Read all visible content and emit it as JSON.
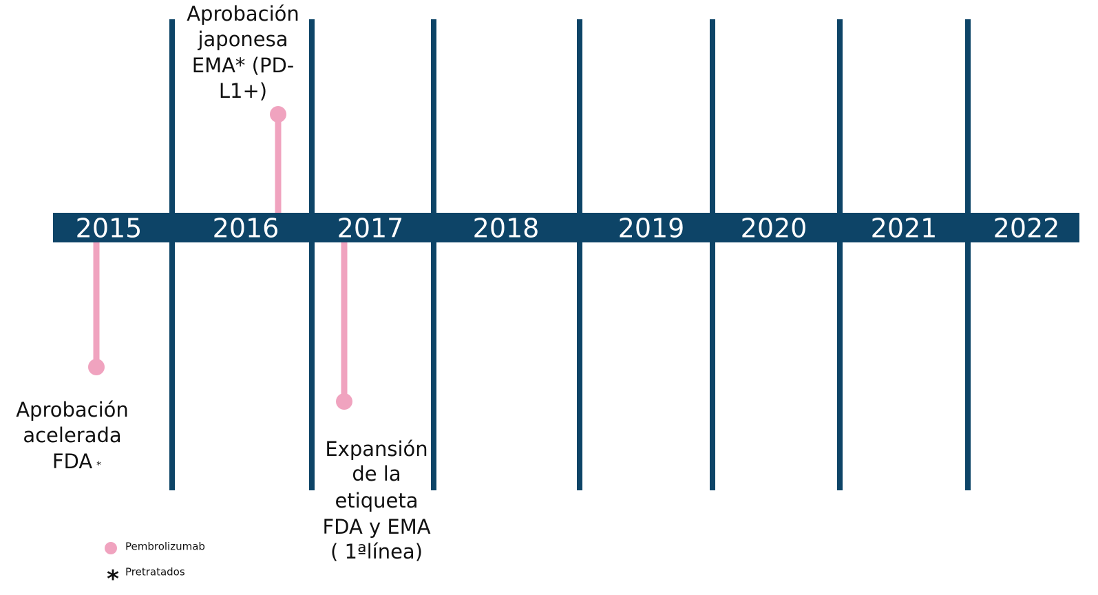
{
  "timeline": {
    "years": [
      "2015",
      "2016",
      "2017",
      "2018",
      "2019",
      "2020",
      "2021",
      "2022"
    ],
    "events": [
      {
        "lines": [
          "Aprobación",
          "acelerada",
          "FDA"
        ],
        "note": "*"
      },
      {
        "lines": [
          "Aprobación",
          "japonesa",
          "EMA* (PD-",
          "L1+)"
        ]
      },
      {
        "lines": [
          "Expansión",
          "de la",
          "etiqueta",
          "FDA y EMA",
          "( 1ªlínea)"
        ]
      }
    ],
    "legend": {
      "marker_label": "Pembrolizumab",
      "note_symbol": "*",
      "note_label": "Pretratados"
    }
  }
}
